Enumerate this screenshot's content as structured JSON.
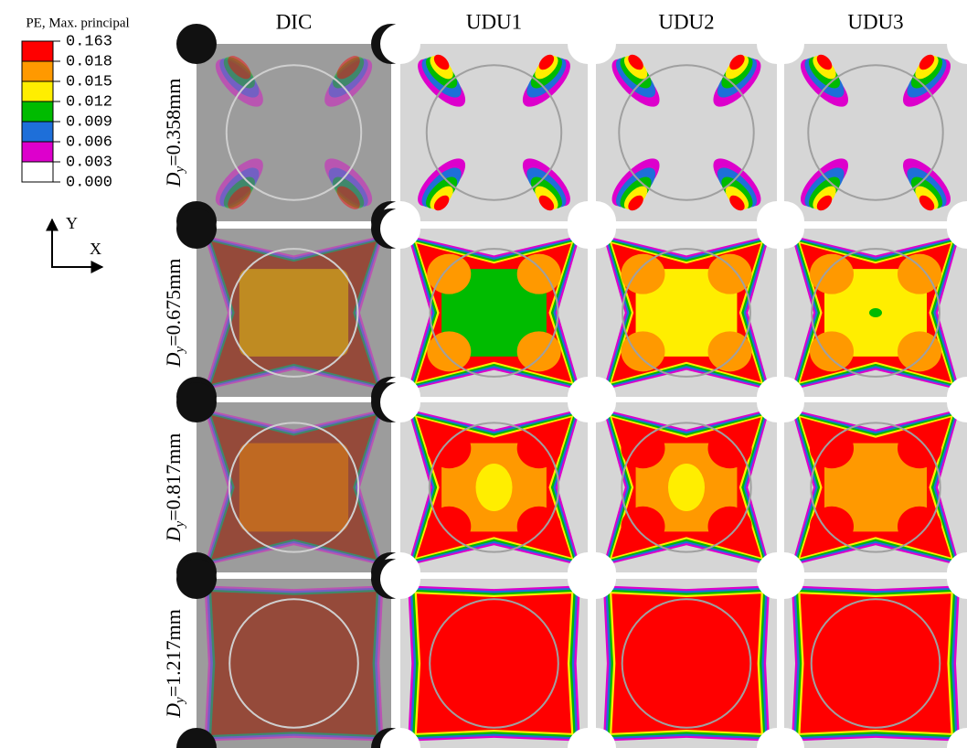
{
  "legend": {
    "title": "PE, Max. principal",
    "labels": [
      "0.163",
      "0.018",
      "0.015",
      "0.012",
      "0.009",
      "0.006",
      "0.003",
      "0.000"
    ],
    "colors": [
      "#ff0000",
      "#ff9900",
      "#ffee00",
      "#00bb00",
      "#1e6fd9",
      "#dd00cc",
      "#ffffff"
    ]
  },
  "axes": {
    "y": "Y",
    "x": "X"
  },
  "columns": [
    "DIC",
    "UDU1",
    "UDU2",
    "UDU3"
  ],
  "rows": [
    {
      "symbol": "D",
      "subscript": "y",
      "value": "=0.358mm"
    },
    {
      "symbol": "D",
      "subscript": "y",
      "value": "=0.675mm"
    },
    {
      "symbol": "D",
      "subscript": "y",
      "value": "=0.817mm"
    },
    {
      "symbol": "D",
      "subscript": "y",
      "value": "=1.217mm"
    }
  ]
}
